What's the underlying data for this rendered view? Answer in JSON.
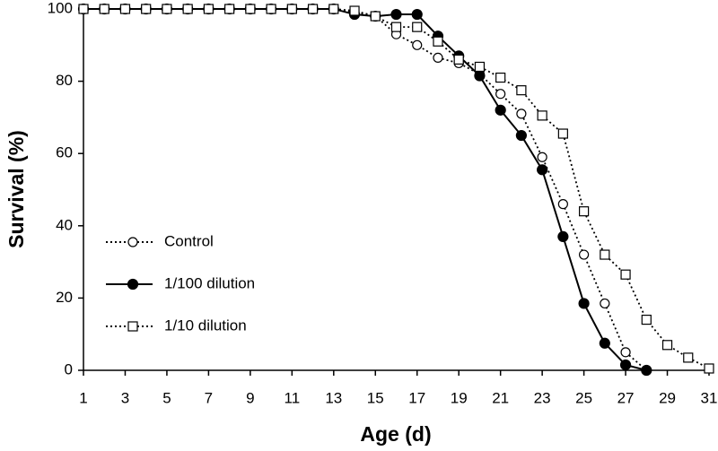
{
  "chart_data": {
    "type": "line",
    "x_label": "Age (d)",
    "y_label": "Survival (%)",
    "x": [
      1,
      2,
      3,
      4,
      5,
      6,
      7,
      8,
      9,
      10,
      11,
      12,
      13,
      14,
      15,
      16,
      17,
      18,
      19,
      20,
      21,
      22,
      23,
      24,
      25,
      26,
      27,
      28,
      29,
      30,
      31
    ],
    "xlim": [
      1,
      31
    ],
    "xticks": [
      1,
      3,
      5,
      7,
      9,
      11,
      13,
      15,
      17,
      19,
      21,
      23,
      25,
      27,
      29,
      31
    ],
    "ylim": [
      0,
      100
    ],
    "yticks": [
      0,
      20,
      40,
      60,
      80,
      100
    ],
    "grid": false,
    "legend": "center left",
    "series": [
      {
        "name": "Control",
        "color": "#000000",
        "line_style": "dotted",
        "marker": "open-circle",
        "values": [
          100,
          100,
          100,
          100,
          100,
          100,
          100,
          100,
          100,
          100,
          100,
          100,
          100,
          99,
          98,
          93,
          90,
          86.5,
          85,
          82,
          76.5,
          71,
          59,
          46,
          32,
          18.5,
          5,
          0,
          null,
          null,
          null
        ]
      },
      {
        "name": "1/100 dilution",
        "color": "#000000",
        "line_style": "solid",
        "marker": "filled-circle",
        "values": [
          100,
          100,
          100,
          100,
          100,
          100,
          100,
          100,
          100,
          100,
          100,
          100,
          100,
          98.5,
          98,
          98.5,
          98.5,
          92.5,
          87,
          81.5,
          72,
          65,
          55.5,
          37,
          18.5,
          7.5,
          1.5,
          0,
          null,
          null,
          null
        ]
      },
      {
        "name": "1/10 dilution",
        "color": "#000000",
        "line_style": "dotted",
        "marker": "open-square",
        "values": [
          100,
          100,
          100,
          100,
          100,
          100,
          100,
          100,
          100,
          100,
          100,
          100,
          100,
          99.5,
          98,
          95,
          95,
          91,
          86,
          84,
          81,
          77.5,
          70.5,
          65.5,
          44,
          32,
          26.5,
          14,
          7,
          3.5,
          0.5
        ]
      }
    ]
  }
}
